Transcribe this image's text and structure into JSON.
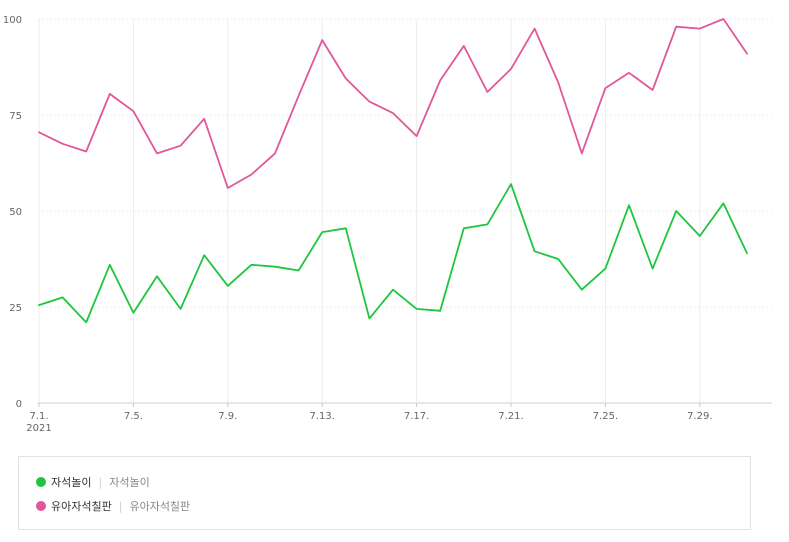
{
  "chart_data": {
    "type": "line",
    "x_tick_labels": [
      "7.1.",
      "7.5.",
      "7.9.",
      "7.13.",
      "7.17.",
      "7.21.",
      "7.25.",
      "7.29."
    ],
    "year_label": "2021",
    "y_ticks": [
      "0",
      "25",
      "50",
      "75",
      "100"
    ],
    "ylim": [
      0,
      100
    ],
    "x": [
      "7.1",
      "7.2",
      "7.3",
      "7.4",
      "7.5",
      "7.6",
      "7.7",
      "7.8",
      "7.9",
      "7.10",
      "7.11",
      "7.12",
      "7.13",
      "7.14",
      "7.15",
      "7.16",
      "7.17",
      "7.18",
      "7.19",
      "7.20",
      "7.21",
      "7.22",
      "7.23",
      "7.24",
      "7.25",
      "7.26",
      "7.27",
      "7.28",
      "7.29",
      "7.30",
      "7.31"
    ],
    "series": [
      {
        "name": "자석놀이",
        "color": "#1ec63f",
        "values": [
          25.5,
          27.5,
          21,
          36,
          23.5,
          33,
          24.5,
          38.5,
          30.5,
          36,
          35.5,
          34.5,
          44.5,
          45.5,
          22,
          29.5,
          24.5,
          24,
          45.5,
          46.5,
          57,
          39.5,
          37.5,
          29.5,
          35,
          51.5,
          35,
          50,
          43.5,
          52,
          39
        ]
      },
      {
        "name": "유아자석칠판",
        "color": "#e0579a",
        "values": [
          70.5,
          67.5,
          65.5,
          80.5,
          76,
          65,
          67,
          74,
          56,
          59.5,
          65,
          80,
          94.5,
          84.5,
          78.5,
          75.5,
          69.5,
          84,
          93,
          81,
          87,
          97.5,
          83.5,
          65,
          82,
          86,
          81.5,
          98,
          97.5,
          100,
          91
        ]
      }
    ]
  },
  "legend": [
    {
      "label": "자석놀이",
      "sub": "자석놀이",
      "color": "#1ec63f"
    },
    {
      "label": "유아자석칠판",
      "sub": "유아자석칠판",
      "color": "#e0579a"
    }
  ]
}
